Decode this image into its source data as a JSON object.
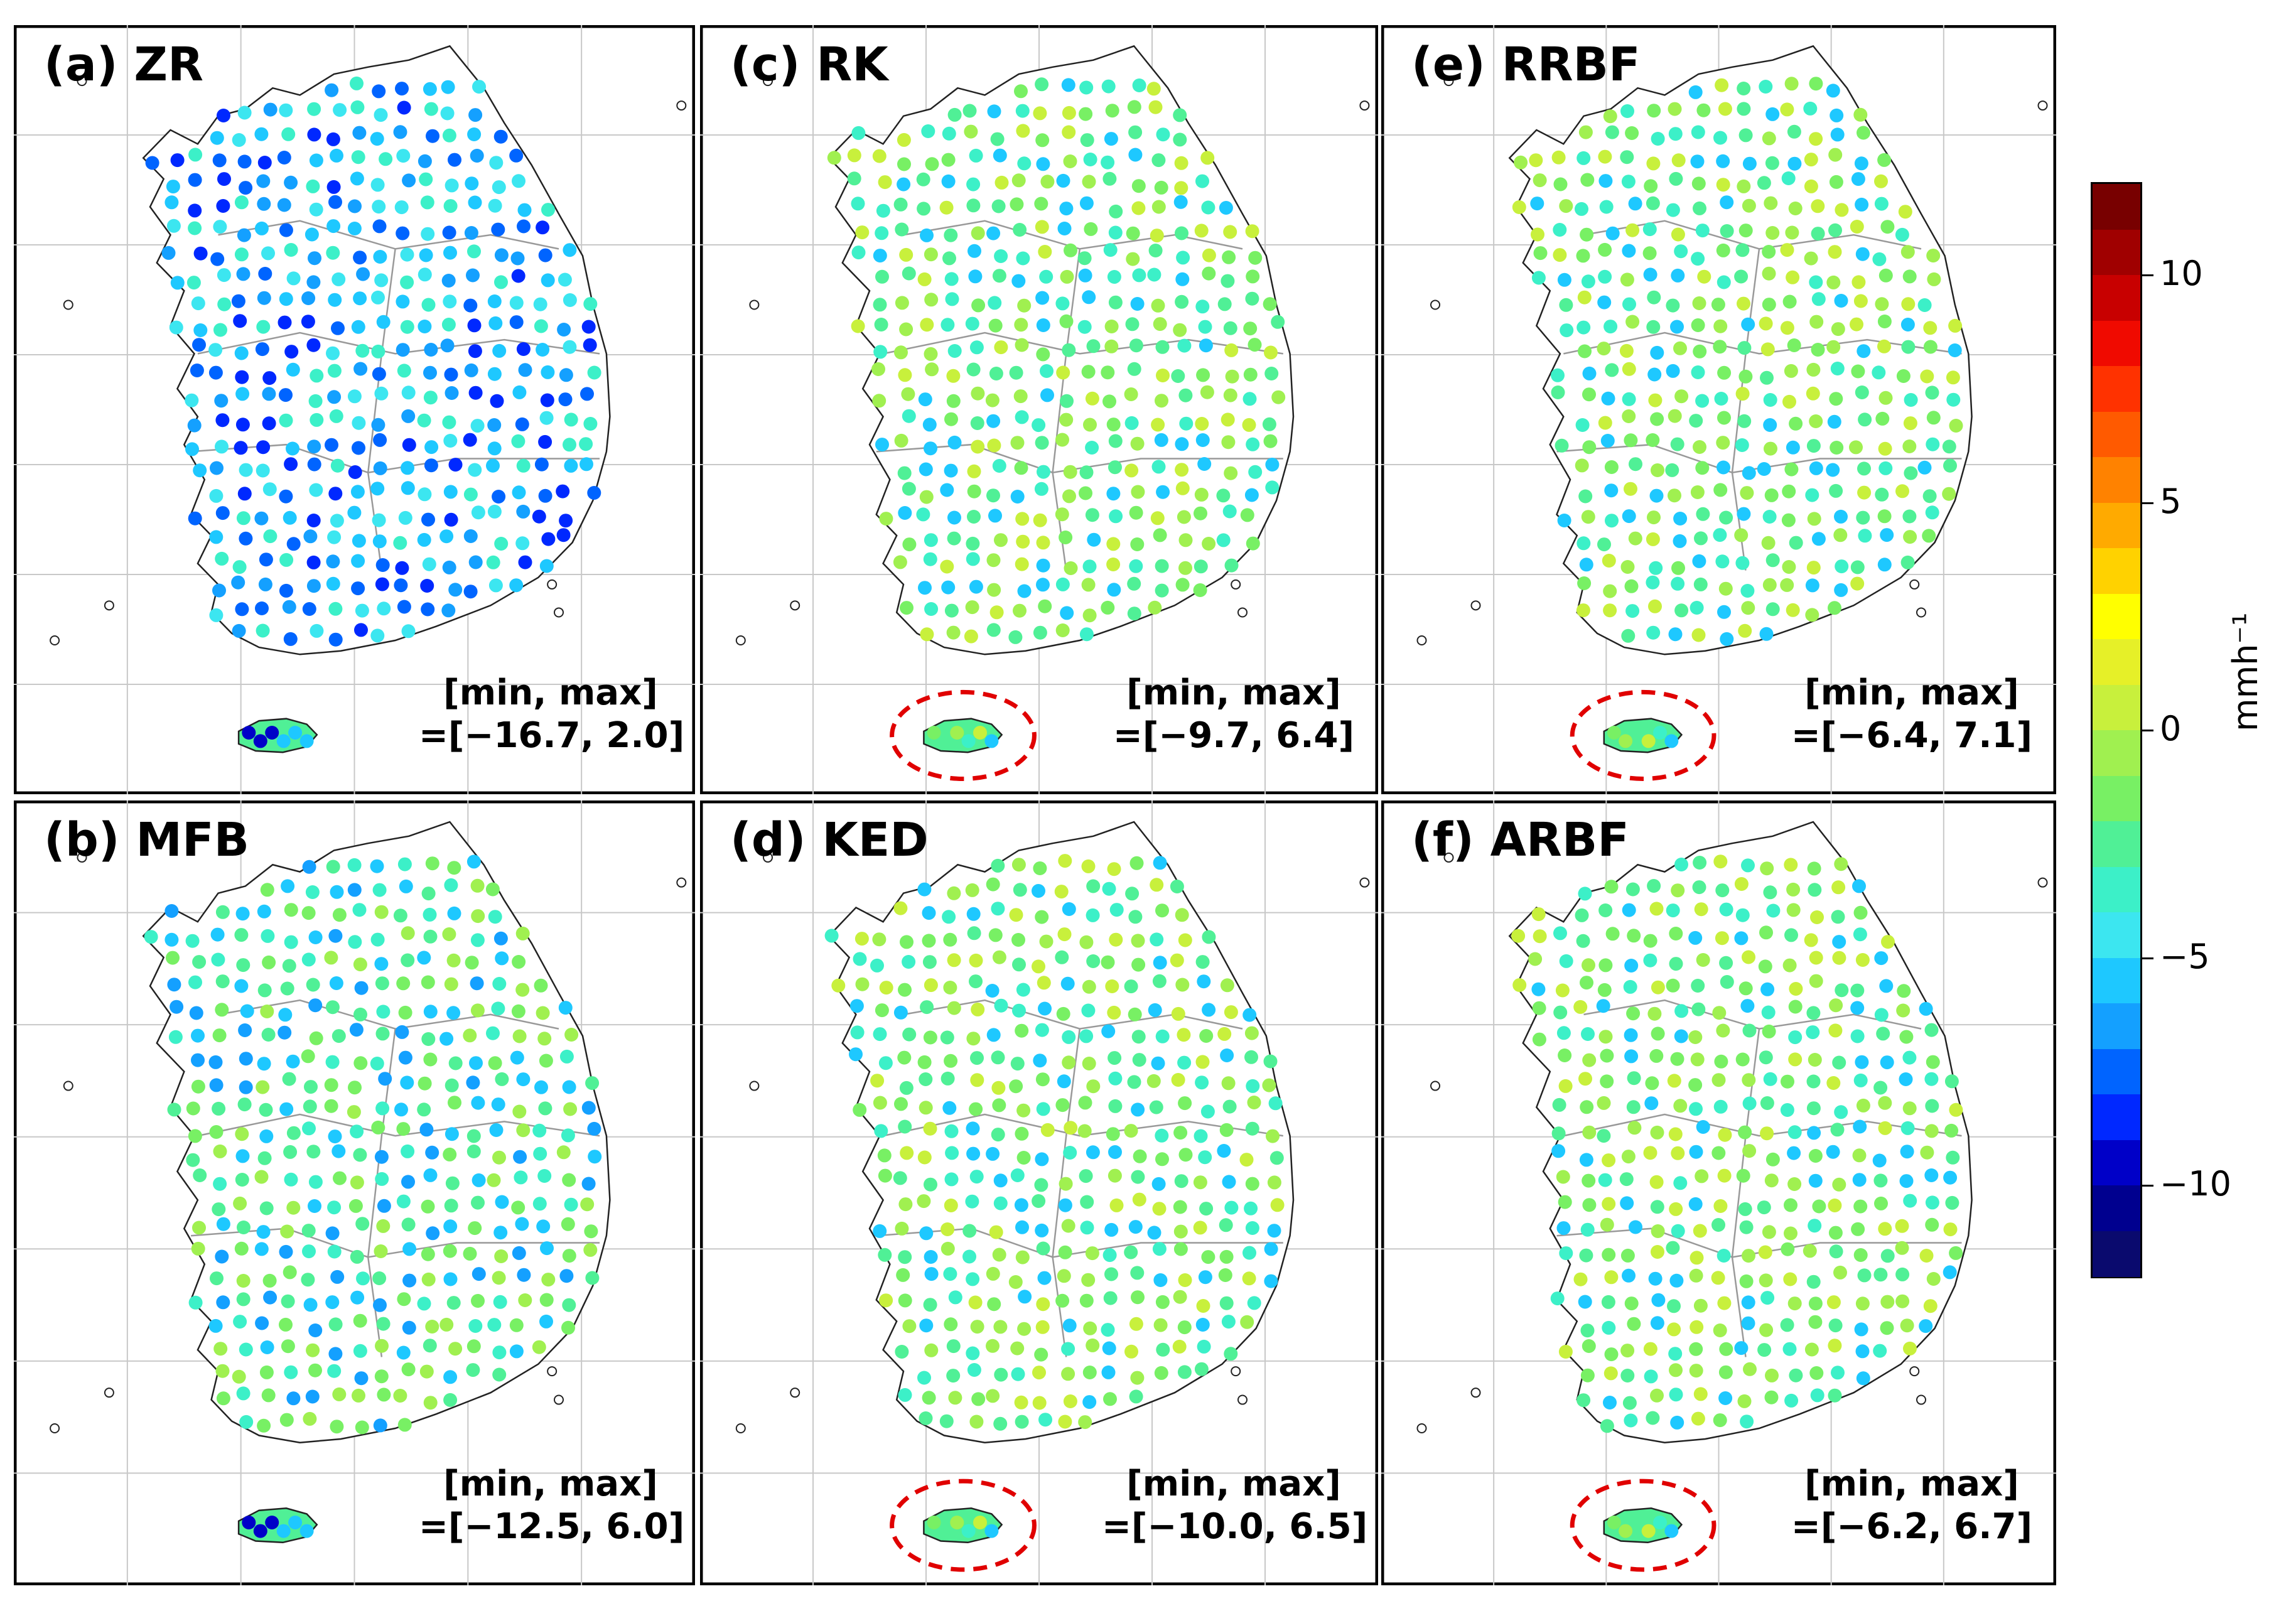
{
  "panels": [
    {
      "id": "a",
      "title": "(a) ZR",
      "minmax_label": "[min, max]",
      "range_text": "=[−16.7, 2.0]",
      "min": -16.7,
      "max": 2.0,
      "highlight_jeju": false
    },
    {
      "id": "b",
      "title": "(b) MFB",
      "minmax_label": "[min, max]",
      "range_text": "=[−12.5, 6.0]",
      "min": -12.5,
      "max": 6.0,
      "highlight_jeju": false
    },
    {
      "id": "c",
      "title": "(c) RK",
      "minmax_label": "[min, max]",
      "range_text": "=[−9.7, 6.4]",
      "min": -9.7,
      "max": 6.4,
      "highlight_jeju": true
    },
    {
      "id": "d",
      "title": "(d) KED",
      "minmax_label": "[min, max]",
      "range_text": "=[−10.0, 6.5]",
      "min": -10.0,
      "max": 6.5,
      "highlight_jeju": true
    },
    {
      "id": "e",
      "title": "(e) RRBF",
      "minmax_label": "[min, max]",
      "range_text": "=[−6.4, 7.1]",
      "min": -6.4,
      "max": 7.1,
      "highlight_jeju": true
    },
    {
      "id": "f",
      "title": "(f) ARBF",
      "minmax_label": "[min, max]",
      "range_text": "=[−6.2, 6.7]",
      "min": -6.2,
      "max": 6.7,
      "highlight_jeju": true
    }
  ],
  "colorbar": {
    "unit": "mmh⁻¹",
    "range": [
      -12,
      12
    ],
    "ticks": [
      {
        "value": 10,
        "label": "10"
      },
      {
        "value": 5,
        "label": "5"
      },
      {
        "value": 0,
        "label": "0"
      },
      {
        "value": -5,
        "label": "−5"
      },
      {
        "value": -10,
        "label": "−10"
      }
    ],
    "colors": [
      "#0a0a6e",
      "#00008f",
      "#0000c8",
      "#0028ff",
      "#0064ff",
      "#14a0ff",
      "#1ec8ff",
      "#3ce6f0",
      "#3cf0c8",
      "#50f096",
      "#78f064",
      "#a0f050",
      "#c8f03c",
      "#e6f028",
      "#ffff00",
      "#ffd200",
      "#ffaa00",
      "#ff8200",
      "#ff5a00",
      "#ff3200",
      "#f00a00",
      "#c80000",
      "#a00000",
      "#780000"
    ],
    "highlight_color": "#e00000"
  },
  "station_colors": {
    "a": [
      "#1ec8ff",
      "#14a0ff",
      "#0064ff",
      "#3ce6f0",
      "#0028ff",
      "#3cf0c8"
    ],
    "b": [
      "#78f064",
      "#50f096",
      "#3cf0c8",
      "#a0f050",
      "#1ec8ff",
      "#14a0ff"
    ],
    "c": [
      "#78f064",
      "#50f096",
      "#a0f050",
      "#3cf0c8",
      "#c8f03c",
      "#1ec8ff"
    ],
    "d": [
      "#78f064",
      "#50f096",
      "#a0f050",
      "#3cf0c8",
      "#c8f03c",
      "#1ec8ff"
    ],
    "e": [
      "#78f064",
      "#a0f050",
      "#50f096",
      "#c8f03c",
      "#3cf0c8",
      "#1ec8ff"
    ],
    "f": [
      "#78f064",
      "#a0f050",
      "#50f096",
      "#c8f03c",
      "#3cf0c8",
      "#1ec8ff"
    ]
  }
}
